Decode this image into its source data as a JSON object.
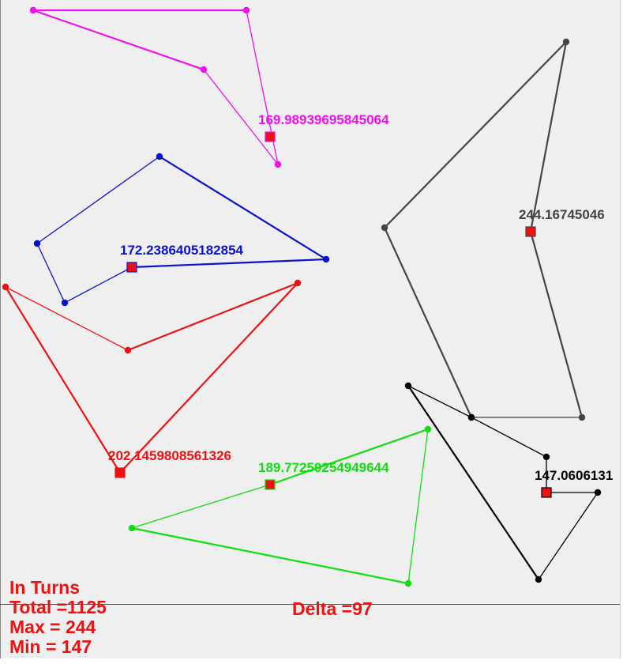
{
  "polygons": [
    {
      "name": "magenta",
      "color": "#ee11ee",
      "label": "169.98939695845064",
      "vertices": [
        [
          42,
          13
        ],
        [
          312,
          13
        ],
        [
          352,
          208
        ],
        [
          258,
          88
        ]
      ],
      "marker": [
        342,
        173
      ]
    },
    {
      "name": "blue",
      "color": "#0a12cc",
      "label": "172.2386405182854",
      "vertices": [
        [
          202,
          198
        ],
        [
          413,
          328
        ],
        [
          167,
          338
        ],
        [
          82,
          383
        ],
        [
          47,
          308
        ]
      ],
      "marker": [
        167,
        338
      ]
    },
    {
      "name": "red",
      "color": "#ee1111",
      "label": "202.1459808561326",
      "vertices": [
        [
          7,
          363
        ],
        [
          162,
          443
        ],
        [
          377,
          358
        ],
        [
          152,
          598
        ]
      ],
      "marker": [
        152,
        598
      ]
    },
    {
      "name": "gray",
      "color": "#444444",
      "label": "244.16745046",
      "vertices": [
        [
          487,
          288
        ],
        [
          717,
          53
        ],
        [
          672,
          293
        ],
        [
          737,
          528
        ],
        [
          597,
          528
        ]
      ],
      "marker": [
        672,
        293
      ]
    },
    {
      "name": "green",
      "color": "#11dd11",
      "label": "189.77259254949644",
      "vertices": [
        [
          167,
          668
        ],
        [
          342,
          613
        ],
        [
          542,
          543
        ],
        [
          517,
          738
        ]
      ],
      "marker": [
        342,
        613
      ]
    },
    {
      "name": "black",
      "color": "#000000",
      "label": "147.0606131",
      "vertices": [
        [
          517,
          488
        ],
        [
          597,
          528
        ],
        [
          692,
          578
        ],
        [
          692,
          623
        ],
        [
          757,
          623
        ],
        [
          682,
          733
        ]
      ],
      "marker": [
        692,
        623
      ]
    }
  ],
  "stats": {
    "mode": "In Turns",
    "total": "Total =1125",
    "max": "Max = 244",
    "min": "Min = 147",
    "delta": "Delta =97"
  },
  "colors": {
    "background": "#efefef",
    "marker": "#ee1111",
    "stat_text": "#ee1111"
  }
}
